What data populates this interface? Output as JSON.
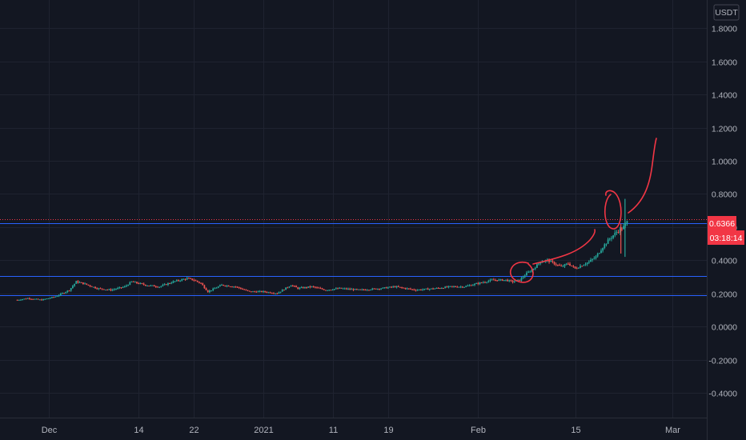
{
  "chart_data": {
    "type": "candlestick",
    "currency_label": "USDT",
    "y_ticks": [
      "1.8000",
      "1.6000",
      "1.4000",
      "1.2000",
      "1.0000",
      "0.8000",
      "0.6000",
      "0.4000",
      "0.2000",
      "0.0000",
      "-0.2000",
      "-0.4000"
    ],
    "x_ticks": [
      {
        "label": "Dec",
        "day": 0
      },
      {
        "label": "14",
        "day": 13
      },
      {
        "label": "22",
        "day": 21
      },
      {
        "label": "2021",
        "day": 31
      },
      {
        "label": "11",
        "day": 41
      },
      {
        "label": "19",
        "day": 49
      },
      {
        "label": "Feb",
        "day": 62
      },
      {
        "label": "15",
        "day": 76
      },
      {
        "label": "Mar",
        "day": 90
      }
    ],
    "ylim": [
      -0.55,
      1.97
    ],
    "xlim": [
      -7.0,
      95.0
    ],
    "price_path": [
      [
        -4.5,
        0.16
      ],
      [
        -3,
        0.17
      ],
      [
        -1,
        0.16
      ],
      [
        1,
        0.18
      ],
      [
        3,
        0.22
      ],
      [
        4,
        0.27
      ],
      [
        5,
        0.26
      ],
      [
        7,
        0.23
      ],
      [
        9,
        0.22
      ],
      [
        11,
        0.24
      ],
      [
        12,
        0.27
      ],
      [
        14,
        0.25
      ],
      [
        16,
        0.24
      ],
      [
        18,
        0.27
      ],
      [
        20,
        0.29
      ],
      [
        21,
        0.28
      ],
      [
        22,
        0.26
      ],
      [
        23,
        0.21
      ],
      [
        25,
        0.25
      ],
      [
        27,
        0.24
      ],
      [
        29,
        0.21
      ],
      [
        30,
        0.21
      ],
      [
        31,
        0.21
      ],
      [
        33,
        0.2
      ],
      [
        35,
        0.25
      ],
      [
        36,
        0.23
      ],
      [
        38,
        0.24
      ],
      [
        40,
        0.22
      ],
      [
        42,
        0.23
      ],
      [
        45,
        0.22
      ],
      [
        48,
        0.23
      ],
      [
        50,
        0.24
      ],
      [
        53,
        0.22
      ],
      [
        56,
        0.23
      ],
      [
        58,
        0.24
      ],
      [
        60,
        0.24
      ],
      [
        61,
        0.25
      ],
      [
        62,
        0.26
      ],
      [
        64,
        0.28
      ],
      [
        66,
        0.28
      ],
      [
        67,
        0.27
      ],
      [
        68,
        0.28
      ],
      [
        69,
        0.32
      ],
      [
        70,
        0.35
      ],
      [
        71,
        0.39
      ],
      [
        72,
        0.4
      ],
      [
        73,
        0.38
      ],
      [
        74,
        0.36
      ],
      [
        75,
        0.38
      ],
      [
        76,
        0.35
      ],
      [
        77,
        0.37
      ],
      [
        78,
        0.39
      ],
      [
        79,
        0.42
      ],
      [
        80,
        0.48
      ],
      [
        81,
        0.53
      ],
      [
        82,
        0.57
      ],
      [
        83,
        0.6
      ],
      [
        83.6,
        0.6366
      ]
    ],
    "spike": {
      "day": 83.2,
      "high": 0.77,
      "low": 0.42
    },
    "horizontal_lines": [
      0.625,
      0.305,
      0.19
    ],
    "price_tag": {
      "value": "0.6366",
      "countdown": "03:18:14"
    },
    "colors": {
      "up": "#26a69a",
      "down": "#ef5350",
      "lines": "#2962ff",
      "annotation": "#f23645",
      "background": "#131722",
      "grid": "#1f2330",
      "text": "#b2b5be",
      "tag": "#f23645"
    }
  }
}
